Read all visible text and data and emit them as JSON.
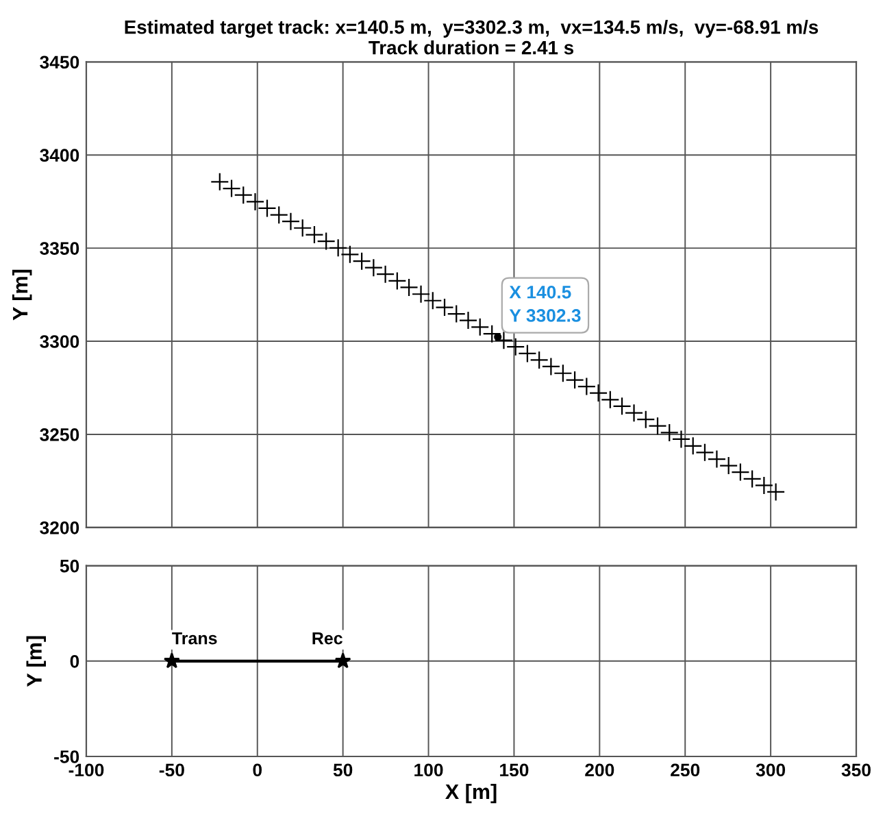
{
  "chart_data": [
    {
      "type": "scatter",
      "title": "Estimated target track: x=140.5 m,  y=3302.3 m,  vx=134.5 m/s,  vy=-68.91 m/s\nTrack duration = 2.41 s",
      "ylabel": "Y [m]",
      "xlim": [
        -100,
        350
      ],
      "ylim": [
        3200,
        3450
      ],
      "xticks": [
        -100,
        -50,
        0,
        50,
        100,
        150,
        200,
        250,
        300,
        350
      ],
      "yticks": [
        3200,
        3250,
        3300,
        3350,
        3400,
        3450
      ],
      "grid": true,
      "tick_labels": "y",
      "series": [
        {
          "color": "#000000",
          "marker": "cross",
          "x": [
            -22.0,
            -15.1,
            -8.2,
            -1.3,
            5.7,
            12.6,
            19.5,
            26.4,
            33.3,
            40.2,
            47.2,
            54.1,
            61.0,
            67.9,
            74.8,
            81.7,
            88.6,
            95.6,
            102.5,
            109.4,
            116.3,
            123.2,
            130.1,
            137.1,
            144.0,
            150.9,
            157.8,
            164.7,
            171.6,
            178.6,
            185.5,
            192.4,
            199.3,
            206.2,
            213.1,
            220.1,
            227.0,
            233.9,
            240.8,
            247.7,
            254.6,
            261.5,
            268.5,
            275.4,
            282.3,
            289.2,
            296.1,
            303.0
          ],
          "values": [
            3385.6,
            3382.0,
            3378.5,
            3374.9,
            3371.4,
            3367.8,
            3364.3,
            3360.8,
            3357.2,
            3353.7,
            3350.1,
            3346.6,
            3343.0,
            3339.5,
            3336.0,
            3332.4,
            3328.9,
            3325.3,
            3321.8,
            3318.2,
            3314.7,
            3311.2,
            3307.6,
            3304.0,
            3300.5,
            3297.0,
            3293.4,
            3289.9,
            3286.4,
            3282.8,
            3279.2,
            3275.7,
            3272.2,
            3268.6,
            3265.1,
            3261.5,
            3258.0,
            3254.5,
            3250.9,
            3247.4,
            3243.8,
            3240.3,
            3236.7,
            3233.2,
            3229.7,
            3226.1,
            3222.6,
            3219.1
          ]
        },
        {
          "color": "#000000",
          "marker": "circle",
          "x": [
            140.5
          ],
          "values": [
            3302.3
          ]
        }
      ],
      "annotations": [
        {
          "text": "X 140.5\nY 3302.3",
          "x": 140.5,
          "y": 3302.3
        }
      ]
    },
    {
      "type": "line",
      "xlabel": "X [m]",
      "ylabel": "Y [m]",
      "xlim": [
        -100,
        350
      ],
      "ylim": [
        -50,
        50
      ],
      "xticks": [
        -100,
        -50,
        0,
        50,
        100,
        150,
        200,
        250,
        300,
        350
      ],
      "yticks": [
        -50,
        0,
        50
      ],
      "grid": true,
      "marker": "star",
      "line_style": "solid",
      "series": [
        {
          "color": "#000000",
          "x": [
            -50,
            50
          ],
          "values": [
            0,
            0
          ]
        }
      ],
      "annotations": [
        {
          "text": "Trans",
          "x": -50,
          "y": 0
        },
        {
          "text": "Rec",
          "x": 50,
          "y": 0
        }
      ]
    }
  ]
}
